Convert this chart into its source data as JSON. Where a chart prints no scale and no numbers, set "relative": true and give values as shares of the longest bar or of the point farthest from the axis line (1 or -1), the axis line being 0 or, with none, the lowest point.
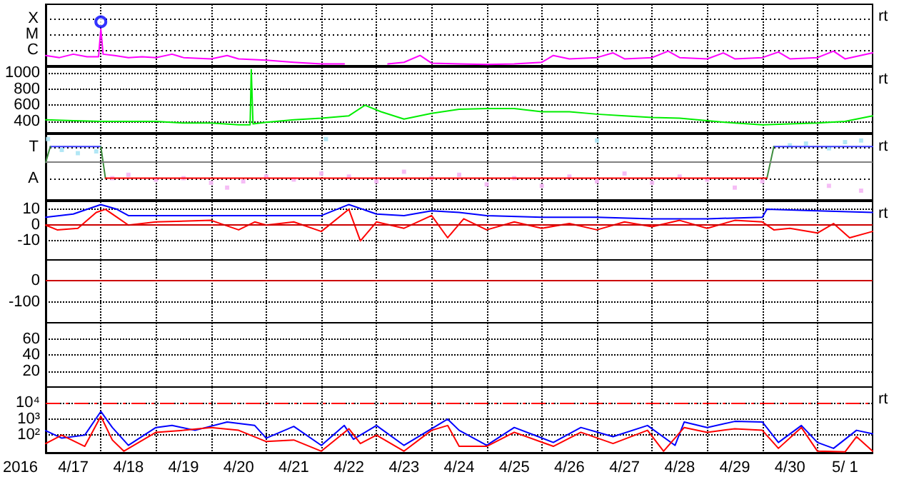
{
  "chart_data": [
    {
      "type": "line",
      "grid": true,
      "tick_labels": "y",
      "xlim": [
        "2016-04-17T00:00",
        "2016-05-02T00:00"
      ],
      "xticks": [
        {
          "value": "2016-04-18T00:00",
          "label": null
        },
        {
          "value": "2016-04-19T00:00",
          "label": null
        },
        {
          "value": "2016-04-20T00:00",
          "label": null
        },
        {
          "value": "2016-04-21T00:00",
          "label": null
        },
        {
          "value": "2016-04-22T00:00",
          "label": null
        },
        {
          "value": "2016-04-23T00:00",
          "label": null
        },
        {
          "value": "2016-04-24T00:00",
          "label": null
        },
        {
          "value": "2016-04-25T00:00",
          "label": null
        },
        {
          "value": "2016-04-26T00:00",
          "label": null
        },
        {
          "value": "2016-04-27T00:00",
          "label": null
        },
        {
          "value": "2016-04-28T00:00",
          "label": null
        },
        {
          "value": "2016-04-29T00:00",
          "label": null
        },
        {
          "value": "2016-04-30T00:00",
          "label": null
        },
        {
          "value": "2016-05-01T00:00",
          "label": null
        }
      ],
      "relative": true,
      "annotations": [
        "rt",
        "X",
        "M",
        "C"
      ],
      "series": [
        {
          "color": "#ff00ff",
          "x": [
            "2016-04-17T00:00",
            "2016-04-17T06:00",
            "2016-04-17T12:00",
            "2016-04-17T18:00",
            "2016-04-17T23:00",
            "2016-04-18T00:00",
            "2016-04-18T01:00",
            "2016-04-18T06:00",
            "2016-04-18T12:00",
            "2016-04-18T18:00",
            "2016-04-19T00:00",
            "2016-04-19T07:00",
            "2016-04-19T12:00",
            "2016-04-20T00:00",
            "2016-04-20T07:00",
            "2016-04-20T12:00",
            "2016-04-21T00:00",
            "2016-04-21T12:00",
            "2016-04-22T00:00",
            "2016-04-22T10:00",
            "2016-04-22T12:00",
            "2016-04-23T05:00",
            "2016-04-23T12:00",
            "2016-04-23T19:00",
            "2016-04-24T00:00",
            "2016-04-24T12:00",
            "2016-04-25T00:00",
            "2016-04-25T12:00",
            "2016-04-26T00:00",
            "2016-04-26T05:00",
            "2016-04-26T12:00",
            "2016-04-27T00:00",
            "2016-04-27T07:00",
            "2016-04-27T12:00",
            "2016-04-28T00:00",
            "2016-04-28T07:00",
            "2016-04-28T12:00",
            "2016-04-29T00:00",
            "2016-04-29T07:00",
            "2016-04-29T12:00",
            "2016-04-30T00:00",
            "2016-04-30T07:00",
            "2016-04-30T12:00",
            "2016-05-01T00:00",
            "2016-05-01T07:00",
            "2016-05-01T12:00",
            "2016-05-02T00:00"
          ],
          "values": [
            0.21,
            0.16,
            0.24,
            0.18,
            0.18,
            0.83,
            0.24,
            0.21,
            0.16,
            0.18,
            0.16,
            0.24,
            0.16,
            0.13,
            0.21,
            0.13,
            0.1,
            0.05,
            0.01,
            0.01,
            null,
            0.01,
            0.05,
            0.21,
            0.03,
            0.01,
            0,
            0.01,
            0.05,
            0.21,
            0.13,
            0.16,
            0.27,
            0.13,
            0.16,
            0.31,
            0.16,
            0.13,
            0.27,
            0.13,
            0.16,
            0.29,
            0.13,
            0.16,
            0.31,
            0.13,
            0.27
          ]
        },
        {
          "type": "scatter",
          "marker": "circle",
          "color": "#0000ff",
          "x": [
            "2016-04-18T00:00"
          ],
          "values": [
            1
          ]
        }
      ]
    },
    {
      "type": "line",
      "grid": true,
      "tick_labels": "y",
      "xlim": [
        "2016-04-17T00:00",
        "2016-05-02T00:00"
      ],
      "xticks": [
        {
          "value": "2016-04-18T00:00",
          "label": null
        },
        {
          "value": "2016-04-19T00:00",
          "label": null
        },
        {
          "value": "2016-04-20T00:00",
          "label": null
        },
        {
          "value": "2016-04-21T00:00",
          "label": null
        },
        {
          "value": "2016-04-22T00:00",
          "label": null
        },
        {
          "value": "2016-04-23T00:00",
          "label": null
        },
        {
          "value": "2016-04-24T00:00",
          "label": null
        },
        {
          "value": "2016-04-25T00:00",
          "label": null
        },
        {
          "value": "2016-04-26T00:00",
          "label": null
        },
        {
          "value": "2016-04-27T00:00",
          "label": null
        },
        {
          "value": "2016-04-28T00:00",
          "label": null
        },
        {
          "value": "2016-04-29T00:00",
          "label": null
        },
        {
          "value": "2016-04-30T00:00",
          "label": null
        },
        {
          "value": "2016-05-01T00:00",
          "label": null
        }
      ],
      "ylim": [
        260,
        1070
      ],
      "yticks": [
        400,
        600,
        800,
        1000
      ],
      "annotations": [
        "rt"
      ],
      "series": [
        {
          "color": "#00ee00",
          "x": [
            "2016-04-17T00:00",
            "2016-04-17T12:00",
            "2016-04-18T00:00",
            "2016-04-18T12:00",
            "2016-04-19T00:00",
            "2016-04-19T12:00",
            "2016-04-20T00:00",
            "2016-04-20T12:00",
            "2016-04-20T17:00",
            "2016-04-20T17:30",
            "2016-04-20T18:15",
            "2016-04-21T00:00",
            "2016-04-21T12:00",
            "2016-04-22T00:00",
            "2016-04-22T12:00",
            "2016-04-22T19:00",
            "2016-04-23T02:00",
            "2016-04-23T12:00",
            "2016-04-24T00:00",
            "2016-04-24T12:00",
            "2016-04-25T00:00",
            "2016-04-25T12:00",
            "2016-04-26T00:00",
            "2016-04-26T12:00",
            "2016-04-27T00:00",
            "2016-04-27T12:00",
            "2016-04-28T00:00",
            "2016-04-28T12:00",
            "2016-04-29T00:00",
            "2016-04-29T12:00",
            "2016-04-30T00:00",
            "2016-04-30T12:00",
            "2016-05-01T00:00",
            "2016-05-01T12:00",
            "2016-05-02T00:00"
          ],
          "values": [
            420,
            410,
            400,
            400,
            400,
            380,
            380,
            360,
            360,
            1040,
            370,
            390,
            420,
            440,
            470,
            600,
            520,
            430,
            500,
            550,
            560,
            560,
            520,
            520,
            490,
            470,
            450,
            440,
            410,
            380,
            360,
            370,
            380,
            400,
            470
          ]
        }
      ]
    },
    {
      "type": "line",
      "grid": true,
      "tick_labels": "y",
      "xlim": [
        "2016-04-17T00:00",
        "2016-05-02T00:00"
      ],
      "xticks": [
        {
          "value": "2016-04-18T00:00",
          "label": null
        },
        {
          "value": "2016-04-19T00:00",
          "label": null
        },
        {
          "value": "2016-04-20T00:00",
          "label": null
        },
        {
          "value": "2016-04-21T00:00",
          "label": null
        },
        {
          "value": "2016-04-22T00:00",
          "label": null
        },
        {
          "value": "2016-04-23T00:00",
          "label": null
        },
        {
          "value": "2016-04-24T00:00",
          "label": null
        },
        {
          "value": "2016-04-25T00:00",
          "label": null
        },
        {
          "value": "2016-04-26T00:00",
          "label": null
        },
        {
          "value": "2016-04-27T00:00",
          "label": null
        },
        {
          "value": "2016-04-28T00:00",
          "label": null
        },
        {
          "value": "2016-04-29T00:00",
          "label": null
        },
        {
          "value": "2016-04-30T00:00",
          "label": null
        },
        {
          "value": "2016-05-01T00:00",
          "label": null
        }
      ],
      "relative": true,
      "annotations": [
        "rt",
        "T",
        "A"
      ],
      "ref_lines": [
        {
          "axis": "y",
          "value": 0,
          "color": "#808080"
        }
      ],
      "series": [
        {
          "type": "scatter",
          "marker": "square",
          "color": "#a8e4f4",
          "x": [
            "2016-04-17T01:00",
            "2016-04-17T07:00",
            "2016-04-17T14:00",
            "2016-04-17T22:00",
            "2016-04-22T02:00",
            "2016-04-27T00:00",
            "2016-04-30T12:00",
            "2016-04-30T19:00",
            "2016-05-01T05:00",
            "2016-05-01T12:00",
            "2016-05-01T19:00"
          ],
          "values": [
            0.83,
            0.44,
            0.33,
            0.39,
            0.83,
            0.78,
            0.61,
            0.67,
            0.5,
            0.72,
            0.78
          ]
        },
        {
          "type": "scatter",
          "marker": "square",
          "color": "#f4b4f4",
          "x": [
            "2016-04-18T05:00",
            "2016-04-18T12:00",
            "2016-04-19T00:00",
            "2016-04-19T12:00",
            "2016-04-20T00:00",
            "2016-04-20T07:00",
            "2016-04-20T14:00",
            "2016-04-21T00:00",
            "2016-04-21T12:00",
            "2016-04-22T00:00",
            "2016-04-22T12:00",
            "2016-04-23T00:00",
            "2016-04-23T12:00",
            "2016-04-24T00:00",
            "2016-04-24T12:00",
            "2016-04-25T00:00",
            "2016-04-25T12:00",
            "2016-04-26T00:00",
            "2016-04-26T12:00",
            "2016-04-27T00:00",
            "2016-04-27T12:00",
            "2016-04-28T00:00",
            "2016-04-28T12:00",
            "2016-04-29T00:00",
            "2016-04-29T12:00",
            "2016-04-30T00:00",
            "2016-05-01T05:00",
            "2016-05-01T19:00"
          ],
          "values": [
            -0.56,
            -0.44,
            -0.61,
            -0.56,
            -0.72,
            -0.89,
            -0.67,
            -0.5,
            -0.61,
            -0.39,
            -0.5,
            -0.67,
            -0.33,
            -0.56,
            -0.44,
            -0.78,
            -0.56,
            -0.83,
            -0.5,
            -0.67,
            -0.39,
            -0.72,
            -0.5,
            -0.61,
            -0.89,
            -0.67,
            -0.83,
            -1
          ]
        },
        {
          "color": "#3c3cff",
          "x": [
            "2016-04-17T02:00",
            "2016-04-18T00:00",
            "2016-04-18T01:00",
            "2016-04-30T05:00",
            "2016-05-02T00:00"
          ],
          "values": [
            0.56,
            0.56,
            null,
            0.56,
            0.56
          ]
        },
        {
          "color": "#3c8c3c",
          "x": [
            "2016-04-17T00:00",
            "2016-04-17T02:00",
            "2016-04-17T03:00",
            "2016-04-18T00:00",
            "2016-04-18T02:00",
            "2016-04-18T03:00",
            "2016-04-30T02:00",
            "2016-04-30T05:00"
          ],
          "values": [
            0,
            0.56,
            null,
            0.56,
            -0.56,
            null,
            -0.56,
            0.56
          ]
        },
        {
          "color": "#ff0000",
          "x": [
            "2016-04-18T02:00",
            "2016-04-30T02:00"
          ],
          "values": [
            -0.56,
            -0.56
          ]
        }
      ]
    },
    {
      "type": "line",
      "grid": true,
      "tick_labels": "y",
      "xlim": [
        "2016-04-17T00:00",
        "2016-05-02T00:00"
      ],
      "xticks": [
        {
          "value": "2016-04-18T00:00",
          "label": null
        },
        {
          "value": "2016-04-19T00:00",
          "label": null
        },
        {
          "value": "2016-04-20T00:00",
          "label": null
        },
        {
          "value": "2016-04-21T00:00",
          "label": null
        },
        {
          "value": "2016-04-22T00:00",
          "label": null
        },
        {
          "value": "2016-04-23T00:00",
          "label": null
        },
        {
          "value": "2016-04-24T00:00",
          "label": null
        },
        {
          "value": "2016-04-25T00:00",
          "label": null
        },
        {
          "value": "2016-04-26T00:00",
          "label": null
        },
        {
          "value": "2016-04-27T00:00",
          "label": null
        },
        {
          "value": "2016-04-28T00:00",
          "label": null
        },
        {
          "value": "2016-04-29T00:00",
          "label": null
        },
        {
          "value": "2016-04-30T00:00",
          "label": null
        },
        {
          "value": "2016-05-01T00:00",
          "label": null
        }
      ],
      "ylim": [
        -22,
        15
      ],
      "yticks": [
        -10,
        0,
        10
      ],
      "annotations": [
        "rt"
      ],
      "ref_lines": [
        {
          "axis": "y",
          "value": 0,
          "color": "#cc0000"
        }
      ],
      "series": [
        {
          "color": "#0000ff",
          "x": [
            "2016-04-17T00:00",
            "2016-04-17T12:00",
            "2016-04-18T00:00",
            "2016-04-18T07:00",
            "2016-04-18T12:00",
            "2016-04-19T00:00",
            "2016-04-20T00:00",
            "2016-04-21T00:00",
            "2016-04-22T00:00",
            "2016-04-22T12:00",
            "2016-04-23T00:00",
            "2016-04-23T12:00",
            "2016-04-24T00:00",
            "2016-04-24T12:00",
            "2016-04-25T00:00",
            "2016-04-26T00:00",
            "2016-04-27T00:00",
            "2016-04-28T00:00",
            "2016-04-29T00:00",
            "2016-04-30T00:00",
            "2016-04-30T02:00",
            "2016-05-01T00:00",
            "2016-05-02T00:00"
          ],
          "values": [
            5,
            7,
            13,
            10,
            6,
            6,
            6,
            6,
            6,
            13,
            7,
            6,
            9,
            8,
            6,
            5,
            5,
            4,
            4,
            5,
            10,
            9,
            8
          ]
        },
        {
          "color": "#ff0000",
          "x": [
            "2016-04-17T00:00",
            "2016-04-17T05:00",
            "2016-04-17T14:00",
            "2016-04-17T22:00",
            "2016-04-18T02:00",
            "2016-04-18T07:00",
            "2016-04-18T12:00",
            "2016-04-19T00:00",
            "2016-04-20T00:00",
            "2016-04-20T12:00",
            "2016-04-20T19:00",
            "2016-04-21T00:00",
            "2016-04-21T12:00",
            "2016-04-22T00:00",
            "2016-04-22T12:00",
            "2016-04-22T17:00",
            "2016-04-23T00:00",
            "2016-04-23T12:00",
            "2016-04-24T00:00",
            "2016-04-24T07:00",
            "2016-04-24T14:00",
            "2016-04-25T00:00",
            "2016-04-25T12:00",
            "2016-04-26T00:00",
            "2016-04-26T12:00",
            "2016-04-27T00:00",
            "2016-04-27T12:00",
            "2016-04-28T00:00",
            "2016-04-28T12:00",
            "2016-04-29T00:00",
            "2016-04-29T12:00",
            "2016-04-30T00:00",
            "2016-04-30T05:00",
            "2016-04-30T12:00",
            "2016-05-01T00:00",
            "2016-05-01T07:00",
            "2016-05-01T14:00",
            "2016-05-02T00:00"
          ],
          "values": [
            0,
            -3,
            -2,
            8,
            10,
            5,
            0,
            2,
            3,
            -3,
            2,
            0,
            2,
            -4,
            10,
            -10,
            2,
            -2,
            6,
            -8,
            4,
            -3,
            2,
            -2,
            1,
            -3,
            2,
            -1,
            3,
            -2,
            3,
            2,
            -3,
            -2,
            -5,
            1,
            -8,
            -4
          ]
        }
      ]
    },
    {
      "type": "line",
      "grid": true,
      "tick_labels": "y",
      "xlim": [
        "2016-04-17T00:00",
        "2016-05-02T00:00"
      ],
      "xticks": [
        {
          "value": "2016-04-18T00:00",
          "label": null
        },
        {
          "value": "2016-04-19T00:00",
          "label": null
        },
        {
          "value": "2016-04-20T00:00",
          "label": null
        },
        {
          "value": "2016-04-21T00:00",
          "label": null
        },
        {
          "value": "2016-04-22T00:00",
          "label": null
        },
        {
          "value": "2016-04-23T00:00",
          "label": null
        },
        {
          "value": "2016-04-24T00:00",
          "label": null
        },
        {
          "value": "2016-04-25T00:00",
          "label": null
        },
        {
          "value": "2016-04-26T00:00",
          "label": null
        },
        {
          "value": "2016-04-27T00:00",
          "label": null
        },
        {
          "value": "2016-04-28T00:00",
          "label": null
        },
        {
          "value": "2016-04-29T00:00",
          "label": null
        },
        {
          "value": "2016-04-30T00:00",
          "label": null
        },
        {
          "value": "2016-05-01T00:00",
          "label": null
        }
      ],
      "ylim": [
        -200,
        100
      ],
      "yticks": [
        -100,
        0
      ],
      "ref_lines": [
        {
          "axis": "y",
          "value": 0,
          "color": "#cc0000"
        }
      ]
    },
    {
      "type": "line",
      "grid": true,
      "tick_labels": "y",
      "xlim": [
        "2016-04-17T00:00",
        "2016-05-02T00:00"
      ],
      "xticks": [
        {
          "value": "2016-04-18T00:00",
          "label": null
        },
        {
          "value": "2016-04-19T00:00",
          "label": null
        },
        {
          "value": "2016-04-20T00:00",
          "label": null
        },
        {
          "value": "2016-04-21T00:00",
          "label": null
        },
        {
          "value": "2016-04-22T00:00",
          "label": null
        },
        {
          "value": "2016-04-23T00:00",
          "label": null
        },
        {
          "value": "2016-04-24T00:00",
          "label": null
        },
        {
          "value": "2016-04-25T00:00",
          "label": null
        },
        {
          "value": "2016-04-26T00:00",
          "label": null
        },
        {
          "value": "2016-04-27T00:00",
          "label": null
        },
        {
          "value": "2016-04-28T00:00",
          "label": null
        },
        {
          "value": "2016-04-29T00:00",
          "label": null
        },
        {
          "value": "2016-04-30T00:00",
          "label": null
        },
        {
          "value": "2016-05-01T00:00",
          "label": null
        }
      ],
      "ylim": [
        0,
        80
      ],
      "yticks": [
        20,
        40,
        60
      ]
    },
    {
      "type": "line",
      "log": true,
      "grid": true,
      "xlim": [
        "2016-04-17T00:00",
        "2016-05-02T00:00"
      ],
      "xticks": [
        {
          "value": "2016-04-17T12:00",
          "label": "4/17"
        },
        {
          "value": "2016-04-18T00:00",
          "label": null
        },
        {
          "value": "2016-04-18T12:00",
          "label": "4/18"
        },
        {
          "value": "2016-04-19T00:00",
          "label": null
        },
        {
          "value": "2016-04-19T12:00",
          "label": "4/19"
        },
        {
          "value": "2016-04-20T00:00",
          "label": null
        },
        {
          "value": "2016-04-20T12:00",
          "label": "4/20"
        },
        {
          "value": "2016-04-21T00:00",
          "label": null
        },
        {
          "value": "2016-04-21T12:00",
          "label": "4/21"
        },
        {
          "value": "2016-04-22T00:00",
          "label": null
        },
        {
          "value": "2016-04-22T12:00",
          "label": "4/22"
        },
        {
          "value": "2016-04-23T00:00",
          "label": null
        },
        {
          "value": "2016-04-23T12:00",
          "label": "4/23"
        },
        {
          "value": "2016-04-24T00:00",
          "label": null
        },
        {
          "value": "2016-04-24T12:00",
          "label": "4/24"
        },
        {
          "value": "2016-04-25T00:00",
          "label": null
        },
        {
          "value": "2016-04-25T12:00",
          "label": "4/25"
        },
        {
          "value": "2016-04-26T00:00",
          "label": null
        },
        {
          "value": "2016-04-26T12:00",
          "label": "4/26"
        },
        {
          "value": "2016-04-27T00:00",
          "label": null
        },
        {
          "value": "2016-04-27T12:00",
          "label": "4/27"
        },
        {
          "value": "2016-04-28T00:00",
          "label": null
        },
        {
          "value": "2016-04-28T12:00",
          "label": "4/28"
        },
        {
          "value": "2016-04-29T00:00",
          "label": null
        },
        {
          "value": "2016-04-29T12:00",
          "label": "4/29"
        },
        {
          "value": "2016-04-30T00:00",
          "label": null
        },
        {
          "value": "2016-04-30T12:00",
          "label": "4/30"
        },
        {
          "value": "2016-05-01T00:00",
          "label": null
        },
        {
          "value": "2016-05-01T12:00",
          "label": "5/ 1"
        }
      ],
      "ylim": [
        8,
        100000
      ],
      "yticks": [
        {
          "value": 100,
          "label": "10²"
        },
        {
          "value": 1000,
          "label": "10³"
        },
        {
          "value": 10000,
          "label": "10⁴"
        }
      ],
      "xlabel": "2016",
      "annotations": [
        "rt"
      ],
      "ref_lines": [
        {
          "axis": "y",
          "value": 10000,
          "color": "#ff0000",
          "line_style": "dashed"
        }
      ],
      "series": [
        {
          "color": "#0000ff",
          "x": [
            "2016-04-17T00:00",
            "2016-04-17T07:00",
            "2016-04-17T17:00",
            "2016-04-18T00:00",
            "2016-04-18T05:00",
            "2016-04-18T12:00",
            "2016-04-19T00:00",
            "2016-04-19T07:00",
            "2016-04-19T17:00",
            "2016-04-20T07:00",
            "2016-04-20T19:00",
            "2016-04-21T00:00",
            "2016-04-21T12:00",
            "2016-04-22T00:00",
            "2016-04-22T10:00",
            "2016-04-22T14:00",
            "2016-04-23T00:00",
            "2016-04-23T12:00",
            "2016-04-24T07:00",
            "2016-04-24T12:00",
            "2016-04-25T00:00",
            "2016-04-25T12:00",
            "2016-04-26T05:00",
            "2016-04-26T17:00",
            "2016-04-27T07:00",
            "2016-04-27T22:00",
            "2016-04-28T10:00",
            "2016-04-28T14:00",
            "2016-04-29T00:00",
            "2016-04-29T12:00",
            "2016-04-30T00:00",
            "2016-04-30T07:00",
            "2016-04-30T17:00",
            "2016-05-01T00:00",
            "2016-05-01T07:00",
            "2016-05-01T17:00",
            "2016-05-02T00:00"
          ],
          "values": [
            190,
            65,
            100,
            3000,
            300,
            23,
            300,
            400,
            200,
            660,
            400,
            65,
            350,
            23,
            400,
            55,
            400,
            23,
            1000,
            200,
            23,
            300,
            35,
            300,
            80,
            400,
            23,
            660,
            300,
            720,
            660,
            35,
            400,
            35,
            15,
            200,
            120
          ]
        },
        {
          "color": "#ff0000",
          "x": [
            "2016-04-17T00:00",
            "2016-04-17T07:00",
            "2016-04-17T17:00",
            "2016-04-18T00:00",
            "2016-04-18T05:00",
            "2016-04-18T10:00",
            "2016-04-19T00:00",
            "2016-04-19T12:00",
            "2016-04-20T00:00",
            "2016-04-20T12:00",
            "2016-04-21T00:00",
            "2016-04-21T12:00",
            "2016-04-22T00:00",
            "2016-04-22T12:00",
            "2016-04-22T17:00",
            "2016-04-23T00:00",
            "2016-04-23T12:00",
            "2016-04-24T00:00",
            "2016-04-24T07:00",
            "2016-04-24T12:00",
            "2016-04-25T00:00",
            "2016-04-25T12:00",
            "2016-04-26T05:00",
            "2016-04-26T17:00",
            "2016-04-27T07:00",
            "2016-04-27T22:00",
            "2016-04-28T05:00",
            "2016-04-28T14:00",
            "2016-04-29T00:00",
            "2016-04-29T12:00",
            "2016-04-30T00:00",
            "2016-04-30T07:00",
            "2016-04-30T17:00",
            "2016-05-01T00:00",
            "2016-05-01T12:00",
            "2016-05-01T17:00",
            "2016-05-02T00:00"
          ],
          "values": [
            30,
            100,
            20,
            1500,
            50,
            10,
            150,
            200,
            300,
            200,
            40,
            50,
            10,
            250,
            30,
            100,
            10,
            200,
            400,
            20,
            20,
            150,
            20,
            150,
            30,
            200,
            10,
            300,
            150,
            250,
            200,
            15,
            300,
            10,
            9,
            80,
            10
          ]
        }
      ]
    }
  ]
}
